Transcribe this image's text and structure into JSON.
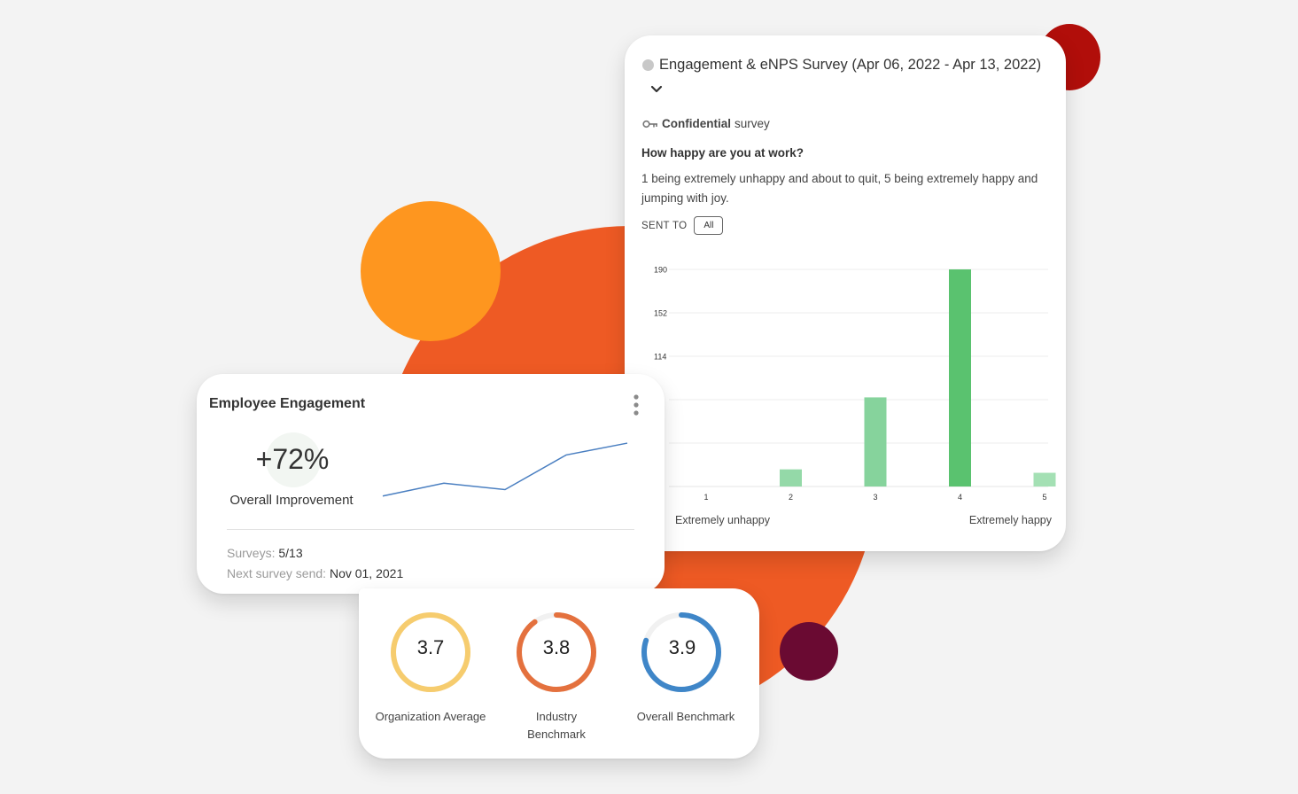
{
  "survey": {
    "title": "Engagement & eNPS Survey (Apr 06, 2022 - Apr 13, 2022)",
    "confidential_bold": "Confidential",
    "confidential_rest": "survey",
    "question": "How happy are you at work?",
    "description": "1 being extremely unhappy and about to quit, 5 being extremely happy and jumping with joy.",
    "sent_to_label": "SENT TO",
    "sent_to_value": "All",
    "scale_low": "Extremely unhappy",
    "scale_high": "Extremely happy"
  },
  "chart_data": {
    "type": "bar",
    "categories": [
      "1",
      "2",
      "3",
      "4",
      "5"
    ],
    "values": [
      0,
      15,
      78,
      190,
      12
    ],
    "y_ticks": [
      "190",
      "152",
      "114",
      "76",
      "38"
    ],
    "ylim": [
      0,
      190
    ],
    "bar_colors": [
      "#94d9a8",
      "#94d9a8",
      "#86d39c",
      "#5ac26f",
      "#a4e0b4"
    ],
    "grid": true
  },
  "engagement": {
    "title": "Employee Engagement",
    "percent": "+72%",
    "percent_label": "Overall Improvement",
    "trend": [
      1.0,
      2.4,
      1.7,
      5.5,
      6.8
    ],
    "surveys_label": "Surveys:",
    "surveys_value": "5/13",
    "next_label": "Next survey send:",
    "next_value": "Nov 01, 2021"
  },
  "benchmarks": [
    {
      "value": "3.7",
      "label": "Organization Average",
      "fraction": 1.0,
      "color": "#f6cc6e",
      "track": "#f1f1f1"
    },
    {
      "value": "3.8",
      "label": "Industry Benchmark",
      "fraction": 0.9,
      "color": "#e4713e",
      "track": "#f1f1f1"
    },
    {
      "value": "3.9",
      "label": "Overall Benchmark",
      "fraction": 0.8,
      "color": "#3f86c8",
      "track": "#f1f1f1"
    }
  ],
  "colors": {
    "accent_orange": "#ee5a24",
    "accent_yellow": "#fe961f",
    "accent_red": "#b10e0a",
    "accent_maroon": "#6a0a32",
    "trend_line": "#4a7fc1"
  }
}
